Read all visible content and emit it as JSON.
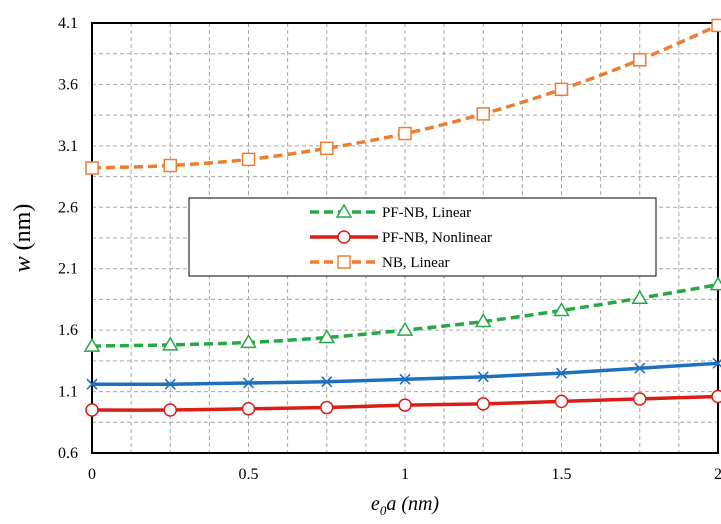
{
  "chart_data": {
    "type": "line",
    "xlabel_main": "e",
    "xlabel_sub": "0",
    "xlabel_rest": "a (nm)",
    "ylabel_main": "w",
    "ylabel_rest": " (nm)",
    "xlim": [
      0,
      2
    ],
    "ylim": [
      0.6,
      4.1
    ],
    "x_ticks": [
      "0",
      "0.5",
      "1",
      "1.5",
      "2"
    ],
    "y_ticks": [
      "0.6",
      "1.1",
      "1.6",
      "2.1",
      "2.6",
      "3.1",
      "3.6",
      "4.1"
    ],
    "grid": true,
    "legend_position": "center-left",
    "x": [
      0,
      0.25,
      0.5,
      0.75,
      1,
      1.25,
      1.5,
      1.75,
      2
    ],
    "series": [
      {
        "name": "NB, Linear",
        "color": "#ED7D31",
        "marker": "square",
        "dash": true,
        "legend": true,
        "values": [
          2.92,
          2.94,
          2.99,
          3.08,
          3.2,
          3.36,
          3.56,
          3.8,
          4.08
        ]
      },
      {
        "name": "PF-NB, Linear",
        "color": "#28A745",
        "marker": "triangle",
        "dash": true,
        "legend": true,
        "values": [
          1.47,
          1.48,
          1.5,
          1.54,
          1.6,
          1.67,
          1.76,
          1.86,
          1.97
        ]
      },
      {
        "name": "",
        "color": "#1F6FBF",
        "marker": "x",
        "dash": false,
        "legend": false,
        "values": [
          1.16,
          1.16,
          1.17,
          1.18,
          1.2,
          1.22,
          1.25,
          1.29,
          1.33
        ]
      },
      {
        "name": "PF-NB, Nonlinear",
        "color": "#D91E18",
        "marker": "circle",
        "dash": false,
        "legend": true,
        "values": [
          0.95,
          0.95,
          0.96,
          0.97,
          0.99,
          1.0,
          1.02,
          1.04,
          1.06
        ]
      }
    ],
    "legend_order": [
      "PF-NB, Linear",
      "PF-NB, Nonlinear",
      "NB, Linear"
    ]
  }
}
